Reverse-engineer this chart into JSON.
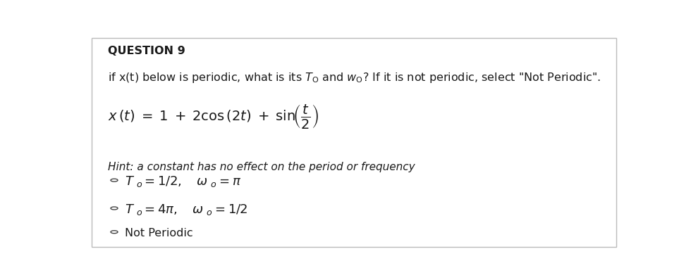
{
  "title": "QUESTION 9",
  "question_text": "if x(t) below is periodic, what is its T",
  "hint_text": "Hint: a constant has no effect on the period or frequency",
  "option3_text": "Not Periodic",
  "bg_color": "#ffffff",
  "border_color": "#cccccc",
  "text_color": "#1a1a1a",
  "title_fontsize": 11.5,
  "body_fontsize": 11.5,
  "eq_fontsize": 14,
  "opt_fontsize": 13
}
